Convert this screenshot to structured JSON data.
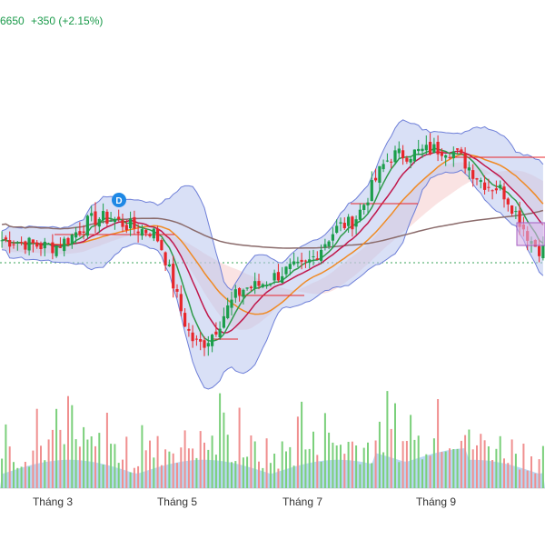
{
  "header": {
    "price_fragment": "6650",
    "change": "+350 (+2.15%)"
  },
  "colors": {
    "up": "#1b9e4b",
    "down": "#e8262b",
    "bollinger_fill": "#b9c6ee",
    "bollinger_line": "#6e7fd8",
    "ma_short": "#2f9a4a",
    "ma_mid": "#c0174b",
    "ma_long": "#f08a24",
    "ma_200": "#8a6a6a",
    "ichimoku_red": "#f5c1c1",
    "ichimoku_green": "#cfe8d3",
    "volume_area": "#7fb8ea",
    "volume_up": "#7bd07b",
    "volume_down": "#f08f8f",
    "marker": "#1e88e5",
    "highlight_box": "#d9b2e6"
  },
  "chart_data": {
    "type": "candlestick",
    "title": "",
    "x_tick_labels": [
      "Tháng 3",
      "Tháng 5",
      "Tháng 7",
      "Tháng 9"
    ],
    "marker_label": "D",
    "grid": false,
    "series": [
      {
        "name": "",
        "kind": "price_close_approx",
        "x": [
          0,
          1,
          2,
          3,
          4,
          5,
          6,
          7,
          8,
          9,
          10,
          11
        ],
        "values": [
          0.55,
          0.53,
          0.62,
          0.58,
          0.22,
          0.4,
          0.46,
          0.6,
          0.82,
          0.84,
          0.72,
          0.52
        ]
      }
    ]
  }
}
